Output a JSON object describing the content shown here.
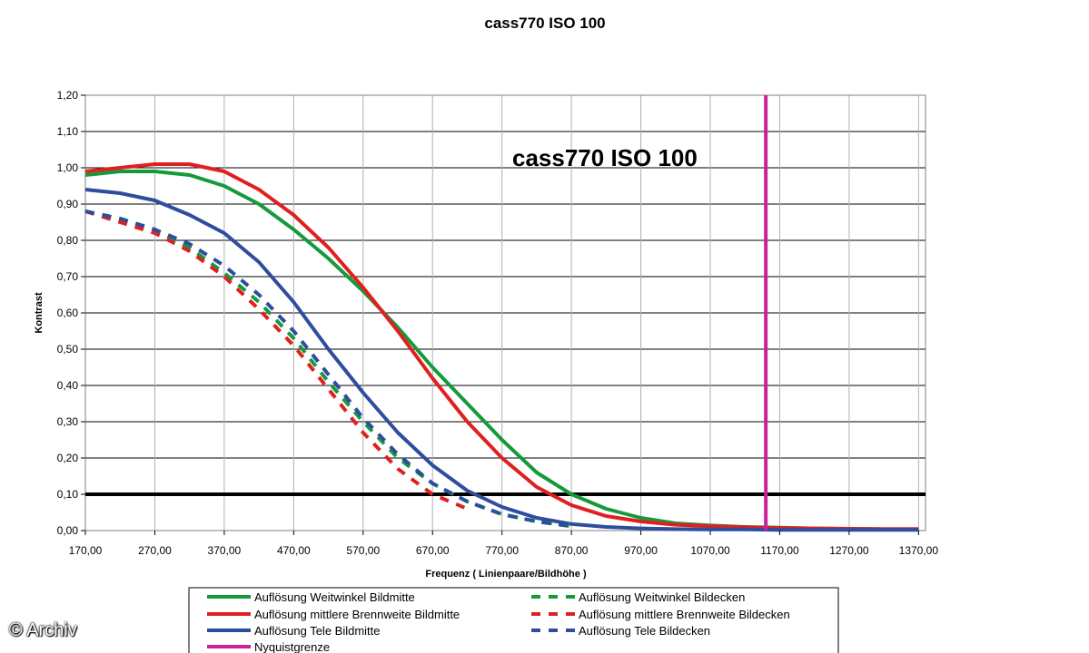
{
  "watermark": "© Archiv",
  "chart_data": {
    "type": "line",
    "title": "cass770 ISO 100",
    "inner_title": "cass770 ISO 100",
    "xlabel": "Frequenz ( Linienpaare/Bildhöhe )",
    "ylabel": "Kontrast",
    "xlim": [
      170,
      1380
    ],
    "ylim": [
      0,
      1.2
    ],
    "x_ticks": [
      "170,00",
      "270,00",
      "370,00",
      "470,00",
      "570,00",
      "670,00",
      "770,00",
      "870,00",
      "970,00",
      "1070,00",
      "1170,00",
      "1270,00",
      "1370,00"
    ],
    "x_tick_values": [
      170,
      270,
      370,
      470,
      570,
      670,
      770,
      870,
      970,
      1070,
      1170,
      1270,
      1370
    ],
    "y_ticks": [
      "0,00",
      "0,10",
      "0,20",
      "0,30",
      "0,40",
      "0,50",
      "0,60",
      "0,70",
      "0,80",
      "0,90",
      "1,00",
      "1,10",
      "1,20"
    ],
    "y_tick_values": [
      0,
      0.1,
      0.2,
      0.3,
      0.4,
      0.5,
      0.6,
      0.7,
      0.8,
      0.9,
      1.0,
      1.1,
      1.2
    ],
    "reference_line_y": 0.1,
    "series": [
      {
        "name": "Auflösung Weitwinkel Bildmitte",
        "color": "#159a3b",
        "dashed": false,
        "x": [
          170,
          220,
          270,
          320,
          370,
          420,
          470,
          520,
          570,
          620,
          670,
          720,
          770,
          820,
          870,
          920,
          970,
          1020,
          1070,
          1120,
          1170,
          1220,
          1270,
          1320,
          1370
        ],
        "y": [
          0.98,
          0.99,
          0.99,
          0.98,
          0.95,
          0.9,
          0.83,
          0.75,
          0.66,
          0.56,
          0.45,
          0.35,
          0.25,
          0.16,
          0.1,
          0.06,
          0.035,
          0.02,
          0.014,
          0.01,
          0.008,
          0.006,
          0.005,
          0.004,
          0.004
        ]
      },
      {
        "name": "Auflösung mittlere Brennweite Bildmitte",
        "color": "#e02020",
        "dashed": false,
        "x": [
          170,
          220,
          270,
          320,
          370,
          420,
          470,
          520,
          570,
          620,
          670,
          720,
          770,
          820,
          870,
          920,
          970,
          1020,
          1070,
          1120,
          1170,
          1220,
          1270,
          1320,
          1370
        ],
        "y": [
          0.99,
          1.0,
          1.01,
          1.01,
          0.99,
          0.94,
          0.87,
          0.78,
          0.67,
          0.55,
          0.42,
          0.3,
          0.2,
          0.12,
          0.07,
          0.04,
          0.025,
          0.016,
          0.012,
          0.009,
          0.007,
          0.006,
          0.005,
          0.004,
          0.004
        ]
      },
      {
        "name": "Auflösung Tele Bildmitte",
        "color": "#2e4d9e",
        "dashed": false,
        "x": [
          170,
          220,
          270,
          320,
          370,
          420,
          470,
          520,
          570,
          620,
          670,
          720,
          770,
          820,
          870,
          920,
          970,
          1020,
          1070,
          1120,
          1170,
          1220,
          1270,
          1320,
          1370
        ],
        "y": [
          0.94,
          0.93,
          0.91,
          0.87,
          0.82,
          0.74,
          0.63,
          0.5,
          0.38,
          0.27,
          0.18,
          0.11,
          0.065,
          0.035,
          0.018,
          0.01,
          0.006,
          0.004,
          0.003,
          0.003,
          0.002,
          0.002,
          0.002,
          0.002,
          0.002
        ]
      },
      {
        "name": "Auflösung Weitwinkel Bildecken",
        "color": "#159a3b",
        "dashed": true,
        "x": [
          170,
          220,
          270,
          320,
          370,
          420,
          470,
          520,
          570,
          620,
          670,
          720,
          770,
          820,
          870
        ],
        "y": [
          0.88,
          0.86,
          0.83,
          0.78,
          0.71,
          0.63,
          0.53,
          0.41,
          0.3,
          0.2,
          0.13,
          0.08,
          0.045,
          0.025,
          0.012
        ]
      },
      {
        "name": "Auflösung mittlere Brennweite Bildecken",
        "color": "#e02020",
        "dashed": true,
        "x": [
          170,
          220,
          270,
          320,
          370,
          420,
          470,
          520,
          570,
          620,
          670,
          720
        ],
        "y": [
          0.88,
          0.85,
          0.82,
          0.77,
          0.7,
          0.61,
          0.51,
          0.39,
          0.27,
          0.17,
          0.1,
          0.06
        ]
      },
      {
        "name": "Auflösung Tele Bildecken",
        "color": "#2e4d9e",
        "dashed": true,
        "x": [
          170,
          220,
          270,
          320,
          370,
          420,
          470,
          520,
          570,
          620,
          670,
          720,
          770,
          820,
          870
        ],
        "y": [
          0.88,
          0.86,
          0.83,
          0.79,
          0.73,
          0.65,
          0.55,
          0.43,
          0.31,
          0.21,
          0.13,
          0.08,
          0.045,
          0.025,
          0.012
        ]
      }
    ],
    "nyquist": {
      "name": "Nyquistgrenze",
      "color": "#cc2299",
      "x": 1150
    },
    "reference_color": "#000000"
  }
}
